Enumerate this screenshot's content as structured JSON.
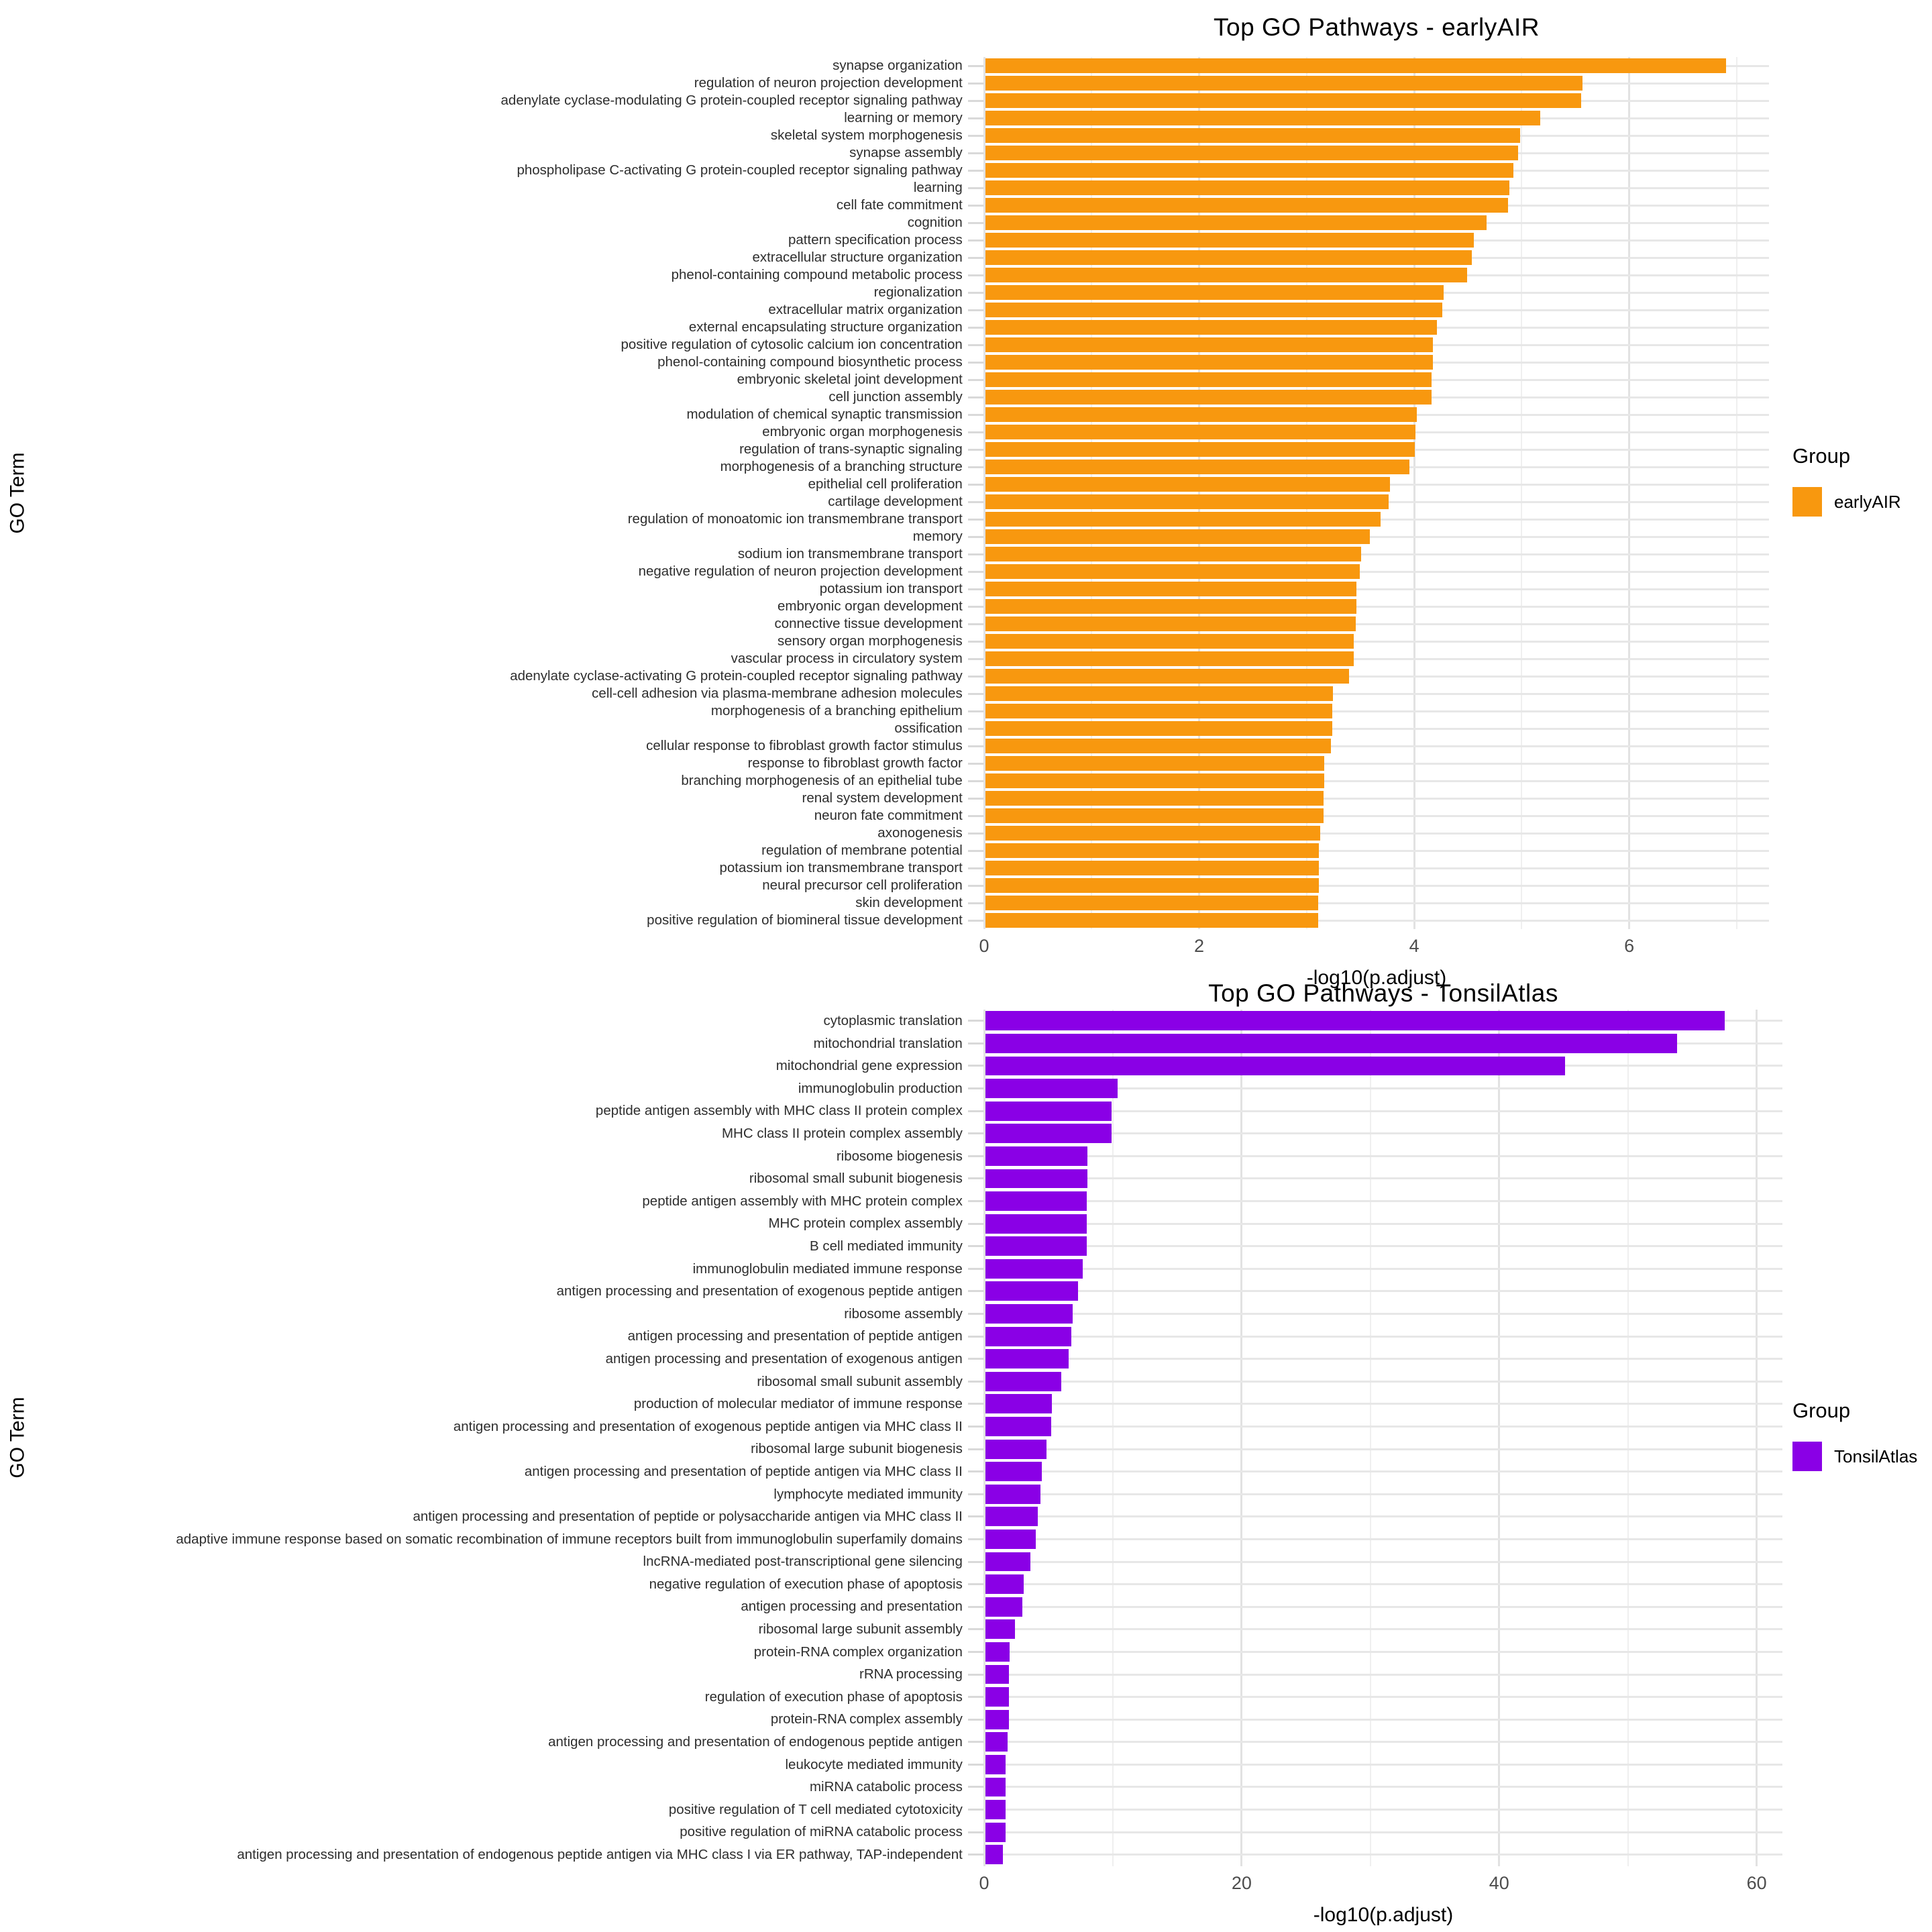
{
  "figure": {
    "background": "#ffffff"
  },
  "chart_data": [
    {
      "type": "bar",
      "orientation": "horizontal",
      "title": "Top GO Pathways - earlyAIR",
      "xlabel": "-log10(p.adjust)",
      "ylabel": "GO Term",
      "legend": {
        "title": "Group",
        "label": "earlyAIR",
        "position": "right"
      },
      "color": "#F8980F",
      "xlim": [
        0,
        7.3
      ],
      "x_ticks": [
        0,
        2,
        4,
        6
      ],
      "minor_step": 1,
      "grid": true,
      "categories": [
        "synapse organization",
        "regulation of neuron projection development",
        "adenylate cyclase-modulating G protein-coupled receptor signaling pathway",
        "learning or memory",
        "skeletal system morphogenesis",
        "synapse assembly",
        "phospholipase C-activating G protein-coupled receptor signaling pathway",
        "learning",
        "cell fate commitment",
        "cognition",
        "pattern specification process",
        "extracellular structure organization",
        "phenol-containing compound metabolic process",
        "regionalization",
        "extracellular matrix organization",
        "external encapsulating structure organization",
        "positive regulation of cytosolic calcium ion concentration",
        "phenol-containing compound biosynthetic process",
        "embryonic skeletal joint development",
        "cell junction assembly",
        "modulation of chemical synaptic transmission",
        "embryonic organ morphogenesis",
        "regulation of trans-synaptic signaling",
        "morphogenesis of a branching structure",
        "epithelial cell proliferation",
        "cartilage development",
        "regulation of monoatomic ion transmembrane transport",
        "memory",
        "sodium ion transmembrane transport",
        "negative regulation of neuron projection development",
        "potassium ion transport",
        "embryonic organ development",
        "connective tissue development",
        "sensory organ morphogenesis",
        "vascular process in circulatory system",
        "adenylate cyclase-activating G protein-coupled receptor signaling pathway",
        "cell-cell adhesion via plasma-membrane adhesion molecules",
        "morphogenesis of a branching epithelium",
        "ossification",
        "cellular response to fibroblast growth factor stimulus",
        "response to fibroblast growth factor",
        "branching morphogenesis of an epithelial tube",
        "renal system development",
        "neuron fate commitment",
        "axonogenesis",
        "regulation of membrane potential",
        "potassium ion transmembrane transport",
        "neural precursor cell proliferation",
        "skin development",
        "positive regulation of biomineral tissue development"
      ],
      "values": [
        6.9,
        5.56,
        5.55,
        5.17,
        4.98,
        4.96,
        4.92,
        4.88,
        4.87,
        4.67,
        4.55,
        4.53,
        4.49,
        4.27,
        4.26,
        4.21,
        4.17,
        4.17,
        4.16,
        4.16,
        4.02,
        4.01,
        4.0,
        3.95,
        3.77,
        3.76,
        3.68,
        3.58,
        3.5,
        3.49,
        3.46,
        3.46,
        3.45,
        3.43,
        3.43,
        3.39,
        3.24,
        3.23,
        3.23,
        3.22,
        3.16,
        3.16,
        3.15,
        3.15,
        3.12,
        3.11,
        3.11,
        3.11,
        3.1,
        3.1
      ]
    },
    {
      "type": "bar",
      "orientation": "horizontal",
      "title": "Top GO Pathways - TonsilAtlas",
      "xlabel": "-log10(p.adjust)",
      "ylabel": "GO Term",
      "legend": {
        "title": "Group",
        "label": "TonsilAtlas",
        "position": "right"
      },
      "color": "#8A00E6",
      "xlim": [
        0,
        62
      ],
      "x_ticks": [
        0,
        20,
        40,
        60
      ],
      "minor_step": 10,
      "grid": true,
      "categories": [
        "cytoplasmic translation",
        "mitochondrial translation",
        "mitochondrial gene expression",
        "immunoglobulin production",
        "peptide antigen assembly with MHC class II protein complex",
        "MHC class II protein complex assembly",
        "ribosome biogenesis",
        "ribosomal small subunit biogenesis",
        "peptide antigen assembly with MHC protein complex",
        "MHC protein complex assembly",
        "B cell mediated immunity",
        "immunoglobulin mediated immune response",
        "antigen processing and presentation of exogenous peptide antigen",
        "ribosome assembly",
        "antigen processing and presentation of peptide antigen",
        "antigen processing and presentation of exogenous antigen",
        "ribosomal small subunit assembly",
        "production of molecular mediator of immune response",
        "antigen processing and presentation of exogenous peptide antigen via MHC class II",
        "ribosomal large subunit biogenesis",
        "antigen processing and presentation of peptide antigen via MHC class II",
        "lymphocyte mediated immunity",
        "antigen processing and presentation of peptide or polysaccharide antigen via MHC class II",
        "adaptive immune response based on somatic recombination of immune receptors built from immunoglobulin superfamily domains",
        "lncRNA-mediated post-transcriptional gene silencing",
        "negative regulation of execution phase of apoptosis",
        "antigen processing and presentation",
        "ribosomal large subunit assembly",
        "protein-RNA complex organization",
        "rRNA processing",
        "regulation of execution phase of apoptosis",
        "protein-RNA complex assembly",
        "antigen processing and presentation of endogenous peptide antigen",
        "leukocyte mediated immunity",
        "miRNA catabolic process",
        "positive regulation of T cell mediated cytotoxicity",
        "positive regulation of miRNA catabolic process",
        "antigen processing and presentation of endogenous peptide antigen via MHC class I via ER pathway, TAP-independent"
      ],
      "values": [
        57.5,
        53.8,
        45.1,
        10.3,
        9.8,
        9.8,
        7.95,
        7.95,
        7.9,
        7.9,
        7.9,
        7.6,
        7.2,
        6.8,
        6.7,
        6.5,
        5.9,
        5.2,
        5.1,
        4.75,
        4.4,
        4.3,
        4.1,
        3.9,
        3.5,
        3.0,
        2.9,
        2.3,
        1.9,
        1.85,
        1.85,
        1.85,
        1.72,
        1.6,
        1.6,
        1.55,
        1.55,
        1.35
      ]
    }
  ]
}
